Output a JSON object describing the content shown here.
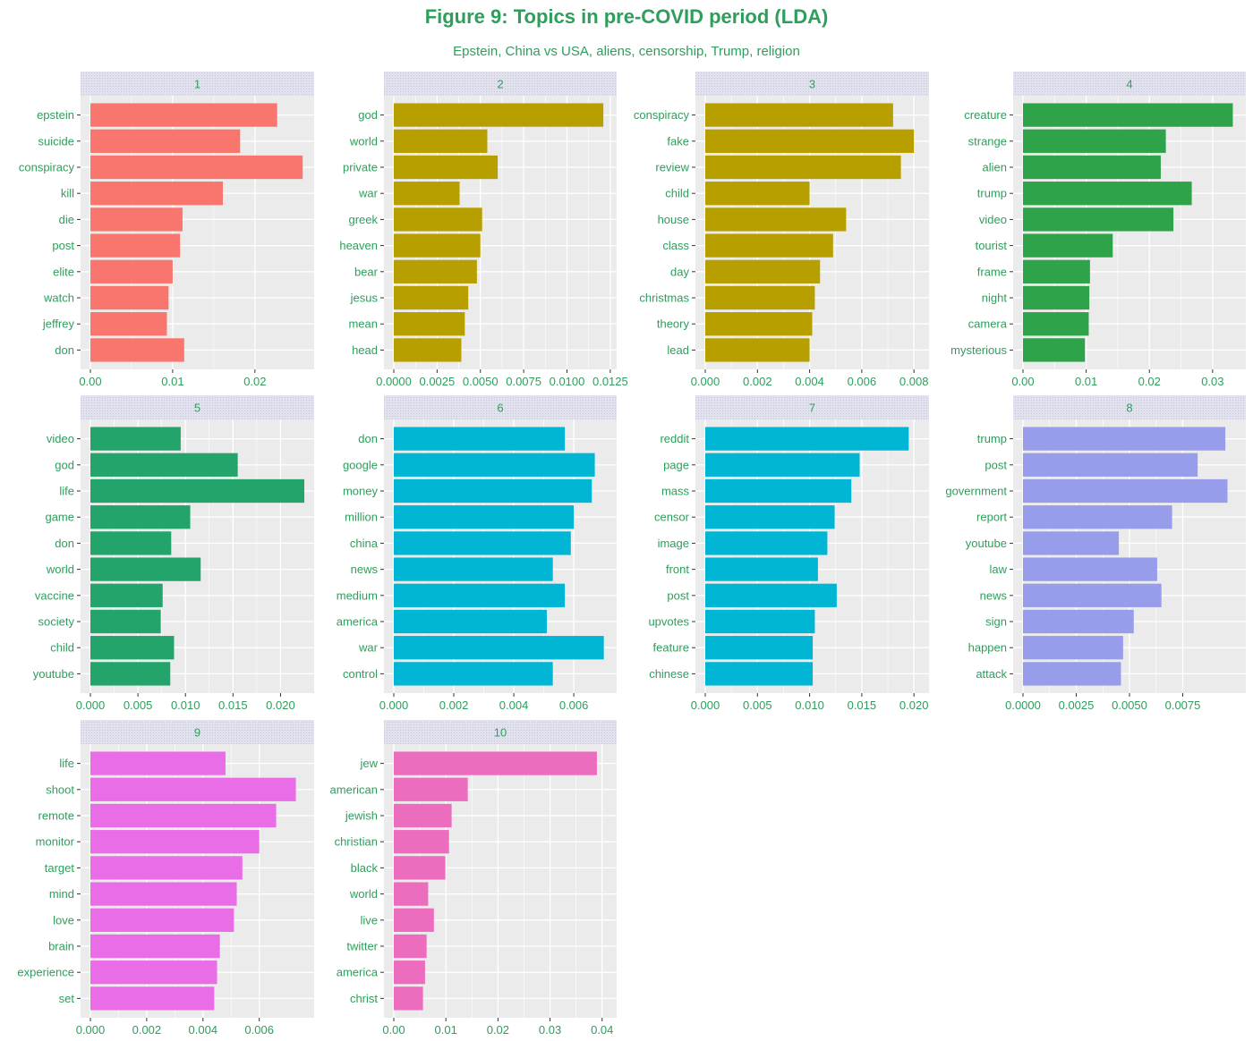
{
  "figure": {
    "title": "Figure 9: Topics in pre-COVID period (LDA)",
    "subtitle": "Epstein, China vs USA, aliens, censorship, Trump, religion"
  },
  "colors": {
    "text": "#2e9e5c",
    "panel_bg": "#ebebeb",
    "strip_bg": "#e2e2ee",
    "grid": "#ffffff"
  },
  "chart_data": [
    {
      "type": "bar",
      "orientation": "horizontal",
      "panel": "1",
      "color": "#f8766d",
      "categories": [
        "epstein",
        "suicide",
        "conspiracy",
        "kill",
        "die",
        "post",
        "elite",
        "watch",
        "jeffrey",
        "don"
      ],
      "values": [
        0.0227,
        0.0182,
        0.0258,
        0.0161,
        0.0112,
        0.0109,
        0.01,
        0.0095,
        0.0093,
        0.0114
      ],
      "xlim": [
        0,
        0.026
      ],
      "ticks": [
        0,
        0.01,
        0.02
      ],
      "tick_labels": [
        "0.00",
        "0.01",
        "0.02"
      ]
    },
    {
      "type": "bar",
      "orientation": "horizontal",
      "panel": "2",
      "color": "#b79f00",
      "categories": [
        "god",
        "world",
        "private",
        "war",
        "greek",
        "heaven",
        "bear",
        "jesus",
        "mean",
        "head"
      ],
      "values": [
        0.0121,
        0.0054,
        0.006,
        0.0038,
        0.0051,
        0.005,
        0.0048,
        0.0043,
        0.0041,
        0.0039
      ],
      "xlim": [
        0,
        0.0123
      ],
      "ticks": [
        0,
        0.0025,
        0.005,
        0.0075,
        0.01,
        0.0125
      ],
      "tick_labels": [
        "0.0000",
        "0.0025",
        "0.0050",
        "0.0075",
        "0.0100",
        "0.0125"
      ]
    },
    {
      "type": "bar",
      "orientation": "horizontal",
      "panel": "3",
      "color": "#b79f00",
      "categories": [
        "conspiracy",
        "fake",
        "review",
        "child",
        "house",
        "class",
        "day",
        "christmas",
        "theory",
        "lead"
      ],
      "values": [
        0.0072,
        0.008,
        0.0075,
        0.004,
        0.0054,
        0.0049,
        0.0044,
        0.0042,
        0.0041,
        0.004
      ],
      "xlim": [
        0,
        0.0082
      ],
      "ticks": [
        0,
        0.002,
        0.004,
        0.006,
        0.008
      ],
      "tick_labels": [
        "0.000",
        "0.002",
        "0.004",
        "0.006",
        "0.008"
      ]
    },
    {
      "type": "bar",
      "orientation": "horizontal",
      "panel": "4",
      "color": "#2ea34a",
      "categories": [
        "creature",
        "strange",
        "alien",
        "trump",
        "video",
        "tourist",
        "frame",
        "night",
        "camera",
        "mysterious"
      ],
      "values": [
        0.0332,
        0.0226,
        0.0218,
        0.0267,
        0.0238,
        0.0142,
        0.0106,
        0.0105,
        0.0104,
        0.0098
      ],
      "xlim": [
        0,
        0.0337
      ],
      "ticks": [
        0,
        0.01,
        0.02,
        0.03
      ],
      "tick_labels": [
        "0.00",
        "0.01",
        "0.02",
        "0.03"
      ]
    },
    {
      "type": "bar",
      "orientation": "horizontal",
      "panel": "5",
      "color": "#23a46b",
      "categories": [
        "video",
        "god",
        "life",
        "game",
        "don",
        "world",
        "vaccine",
        "society",
        "child",
        "youtube"
      ],
      "values": [
        0.0095,
        0.0155,
        0.0225,
        0.0105,
        0.0085,
        0.0116,
        0.0076,
        0.0074,
        0.0088,
        0.0084
      ],
      "xlim": [
        0,
        0.0225
      ],
      "ticks": [
        0,
        0.005,
        0.01,
        0.015,
        0.02
      ],
      "tick_labels": [
        "0.000",
        "0.005",
        "0.010",
        "0.015",
        "0.020"
      ]
    },
    {
      "type": "bar",
      "orientation": "horizontal",
      "panel": "6",
      "color": "#00b6d4",
      "categories": [
        "don",
        "google",
        "money",
        "million",
        "china",
        "news",
        "medium",
        "america",
        "war",
        "control"
      ],
      "values": [
        0.0057,
        0.0067,
        0.0066,
        0.006,
        0.0059,
        0.0053,
        0.0057,
        0.0051,
        0.007,
        0.0053
      ],
      "xlim": [
        0,
        0.0071
      ],
      "ticks": [
        0,
        0.002,
        0.004,
        0.006
      ],
      "tick_labels": [
        "0.000",
        "0.002",
        "0.004",
        "0.006"
      ]
    },
    {
      "type": "bar",
      "orientation": "horizontal",
      "panel": "7",
      "color": "#00b6d4",
      "categories": [
        "reddit",
        "page",
        "mass",
        "censor",
        "image",
        "front",
        "post",
        "upvotes",
        "feature",
        "chinese"
      ],
      "values": [
        0.0195,
        0.0148,
        0.014,
        0.0124,
        0.0117,
        0.0108,
        0.0126,
        0.0105,
        0.0103,
        0.0103
      ],
      "xlim": [
        0,
        0.0205
      ],
      "ticks": [
        0,
        0.005,
        0.01,
        0.015,
        0.02
      ],
      "tick_labels": [
        "0.000",
        "0.005",
        "0.010",
        "0.015",
        "0.020"
      ]
    },
    {
      "type": "bar",
      "orientation": "horizontal",
      "panel": "8",
      "color": "#979dea",
      "categories": [
        "trump",
        "post",
        "government",
        "report",
        "youtube",
        "law",
        "news",
        "sign",
        "happen",
        "attack"
      ],
      "values": [
        0.0095,
        0.0082,
        0.0096,
        0.007,
        0.0045,
        0.0063,
        0.0065,
        0.0052,
        0.0047,
        0.0046
      ],
      "xlim": [
        0,
        0.01
      ],
      "ticks": [
        0,
        0.0025,
        0.005,
        0.0075
      ],
      "tick_labels": [
        "0.0000",
        "0.0025",
        "0.0050",
        "0.0075"
      ]
    },
    {
      "type": "bar",
      "orientation": "horizontal",
      "panel": "9",
      "color": "#e96de6",
      "categories": [
        "life",
        "shoot",
        "remote",
        "monitor",
        "target",
        "mind",
        "love",
        "brain",
        "experience",
        "set"
      ],
      "values": [
        0.0048,
        0.0073,
        0.0066,
        0.006,
        0.0054,
        0.0052,
        0.0051,
        0.0046,
        0.0045,
        0.0044
      ],
      "xlim": [
        0,
        0.0076
      ],
      "ticks": [
        0,
        0.002,
        0.004,
        0.006
      ],
      "tick_labels": [
        "0.000",
        "0.002",
        "0.004",
        "0.006"
      ]
    },
    {
      "type": "bar",
      "orientation": "horizontal",
      "panel": "10",
      "color": "#ec6cbd",
      "categories": [
        "jew",
        "american",
        "jewish",
        "christian",
        "black",
        "world",
        "live",
        "twitter",
        "america",
        "christ"
      ],
      "values": [
        0.039,
        0.0142,
        0.0111,
        0.0106,
        0.0099,
        0.0066,
        0.0077,
        0.0063,
        0.006,
        0.0056
      ],
      "xlim": [
        0,
        0.0409
      ],
      "ticks": [
        0,
        0.01,
        0.02,
        0.03,
        0.04
      ],
      "tick_labels": [
        "0.00",
        "0.01",
        "0.02",
        "0.03",
        "0.04"
      ]
    }
  ]
}
